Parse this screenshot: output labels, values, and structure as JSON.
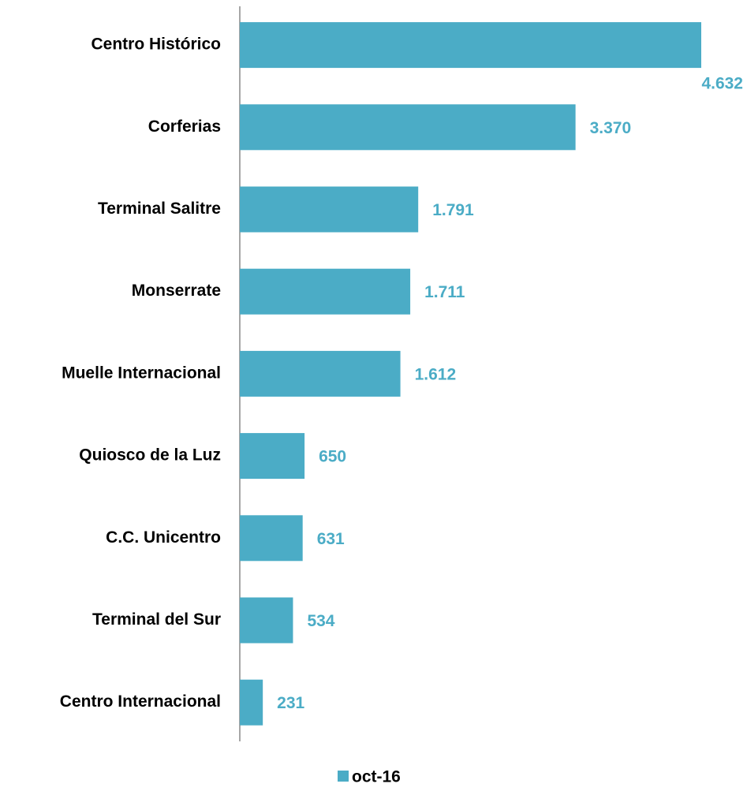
{
  "chart_data": {
    "type": "bar",
    "orientation": "horizontal",
    "categories": [
      "Centro Histórico",
      "Corferias",
      "Terminal Salitre",
      "Monserrate",
      "Muelle Internacional",
      "Quiosco de la Luz",
      "C.C. Unicentro",
      "Terminal del Sur",
      "Centro Internacional"
    ],
    "series": [
      {
        "name": "oct-16",
        "color": "#4bacc6",
        "values": [
          4632,
          3370,
          1791,
          1711,
          1612,
          650,
          631,
          534,
          231
        ],
        "value_labels": [
          "4.632",
          "3.370",
          "1.791",
          "1.711",
          "1.612",
          "650",
          "631",
          "534",
          "231"
        ]
      }
    ],
    "legend": "bottom"
  }
}
